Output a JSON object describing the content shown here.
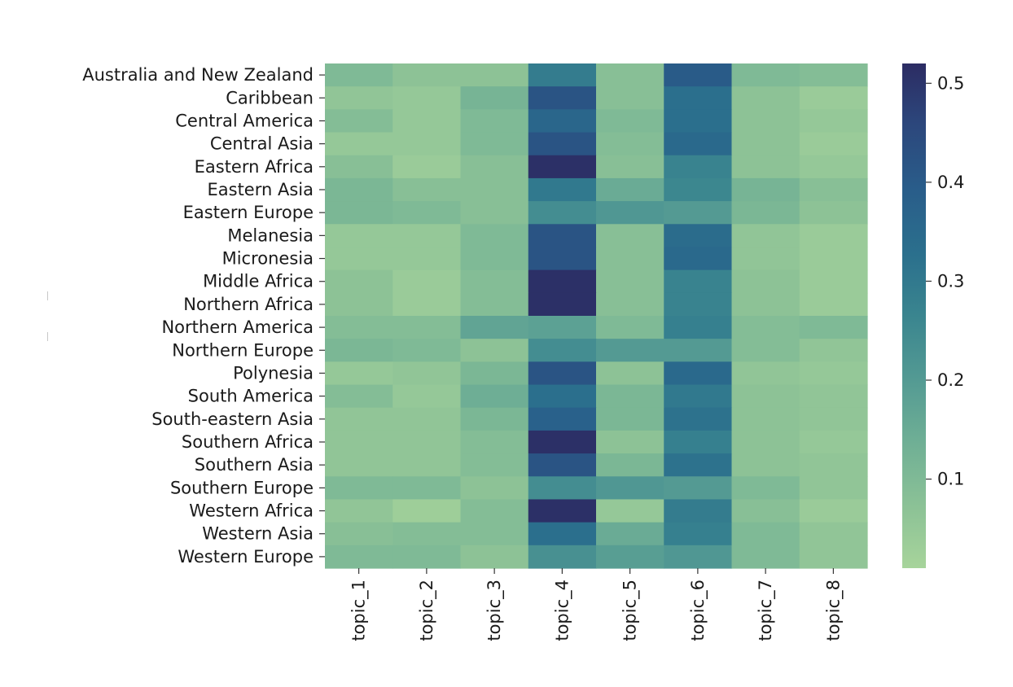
{
  "chart_data": {
    "type": "heatmap",
    "title": "",
    "xlabel": "",
    "ylabel": "",
    "x_categories": [
      "topic_1",
      "topic_2",
      "topic_3",
      "topic_4",
      "topic_5",
      "topic_6",
      "topic_7",
      "topic_8"
    ],
    "y_categories": [
      "Australia and New Zealand",
      "Caribbean",
      "Central America",
      "Central Asia",
      "Eastern Africa",
      "Eastern Asia",
      "Eastern Europe",
      "Melanesia",
      "Micronesia",
      "Middle Africa",
      "Northern Africa",
      "Northern America",
      "Northern Europe",
      "Polynesia",
      "South America",
      "South-eastern Asia",
      "Southern Africa",
      "Southern Asia",
      "Southern Europe",
      "Western Africa",
      "Western Asia",
      "Western Europe"
    ],
    "values": [
      [
        0.1,
        0.07,
        0.07,
        0.29,
        0.08,
        0.4,
        0.1,
        0.09
      ],
      [
        0.06,
        0.05,
        0.12,
        0.42,
        0.08,
        0.33,
        0.07,
        0.04
      ],
      [
        0.09,
        0.05,
        0.1,
        0.36,
        0.1,
        0.33,
        0.07,
        0.05
      ],
      [
        0.05,
        0.05,
        0.1,
        0.42,
        0.09,
        0.35,
        0.07,
        0.04
      ],
      [
        0.08,
        0.04,
        0.08,
        0.51,
        0.08,
        0.27,
        0.07,
        0.05
      ],
      [
        0.11,
        0.08,
        0.08,
        0.3,
        0.15,
        0.26,
        0.12,
        0.08
      ],
      [
        0.11,
        0.1,
        0.08,
        0.24,
        0.21,
        0.2,
        0.11,
        0.07
      ],
      [
        0.05,
        0.05,
        0.1,
        0.42,
        0.08,
        0.34,
        0.06,
        0.04
      ],
      [
        0.05,
        0.05,
        0.1,
        0.42,
        0.08,
        0.35,
        0.06,
        0.04
      ],
      [
        0.07,
        0.04,
        0.09,
        0.51,
        0.08,
        0.27,
        0.07,
        0.04
      ],
      [
        0.07,
        0.04,
        0.09,
        0.51,
        0.08,
        0.27,
        0.07,
        0.04
      ],
      [
        0.09,
        0.09,
        0.17,
        0.18,
        0.1,
        0.28,
        0.09,
        0.1
      ],
      [
        0.11,
        0.1,
        0.07,
        0.24,
        0.2,
        0.2,
        0.09,
        0.06
      ],
      [
        0.05,
        0.06,
        0.11,
        0.42,
        0.07,
        0.35,
        0.06,
        0.05
      ],
      [
        0.09,
        0.05,
        0.14,
        0.33,
        0.11,
        0.3,
        0.07,
        0.06
      ],
      [
        0.06,
        0.06,
        0.11,
        0.38,
        0.11,
        0.32,
        0.07,
        0.06
      ],
      [
        0.06,
        0.06,
        0.09,
        0.51,
        0.07,
        0.28,
        0.07,
        0.05
      ],
      [
        0.06,
        0.06,
        0.09,
        0.42,
        0.11,
        0.32,
        0.07,
        0.06
      ],
      [
        0.1,
        0.1,
        0.07,
        0.24,
        0.21,
        0.2,
        0.1,
        0.06
      ],
      [
        0.06,
        0.03,
        0.09,
        0.51,
        0.05,
        0.29,
        0.08,
        0.04
      ],
      [
        0.08,
        0.09,
        0.09,
        0.33,
        0.15,
        0.28,
        0.1,
        0.06
      ],
      [
        0.1,
        0.1,
        0.07,
        0.23,
        0.19,
        0.21,
        0.1,
        0.06
      ]
    ],
    "colorbar": {
      "range": [
        0.01,
        0.52
      ],
      "ticks": [
        "0.1",
        "0.2",
        "0.3",
        "0.4",
        "0.5"
      ],
      "colormap": "crest",
      "color_low": "#a7d49b",
      "color_high": "#2c2c63"
    },
    "grid": false,
    "legend": "colorbar-right"
  }
}
